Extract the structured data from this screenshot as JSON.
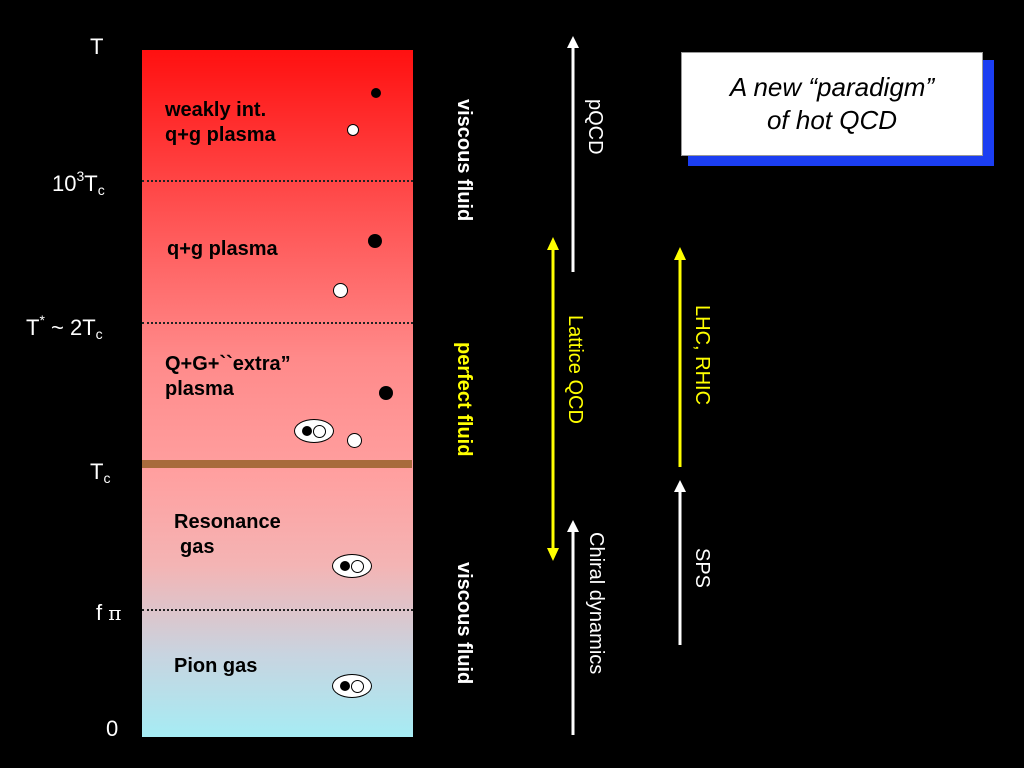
{
  "axis": {
    "t": "T",
    "t1000_base": "10",
    "t1000_exp": "3",
    "t1000_unit": "T",
    "t1000_sub": "c",
    "tstar_base": "T",
    "tstar_exp": "*",
    "tstar_rest": " ~ 2T",
    "tstar_sub": "c",
    "tc_base": "T",
    "tc_sub": "c",
    "fpi_base": "f",
    "fpi_sym": "π",
    "zero": "0"
  },
  "regions": {
    "weak_line1": "weakly int.",
    "weak_line2": "q+g plasma",
    "qg": "q+g plasma",
    "extra_line1": "Q+G+``extra”",
    "extra_line2": "plasma",
    "resonance_line1": "Resonance",
    "resonance_line2": "gas",
    "pion": "Pion gas"
  },
  "fluid": {
    "top": "viscous fluid",
    "middle": "perfect fluid",
    "bottom": "viscous fluid"
  },
  "methods": {
    "pqcd": "pQCD",
    "lattice": "Lattice QCD",
    "chiral": "Chiral dynamics",
    "lhc_rhic": "LHC,  RHIC",
    "sps": "SPS"
  },
  "paradigm": {
    "line1": "A new “paradigm”",
    "line2": "of hot QCD"
  },
  "colors": {
    "perfect_fluid": "#ffff00",
    "lattice_arrow": "#ffff00",
    "accent_box_shadow": "#1b3ef2"
  }
}
